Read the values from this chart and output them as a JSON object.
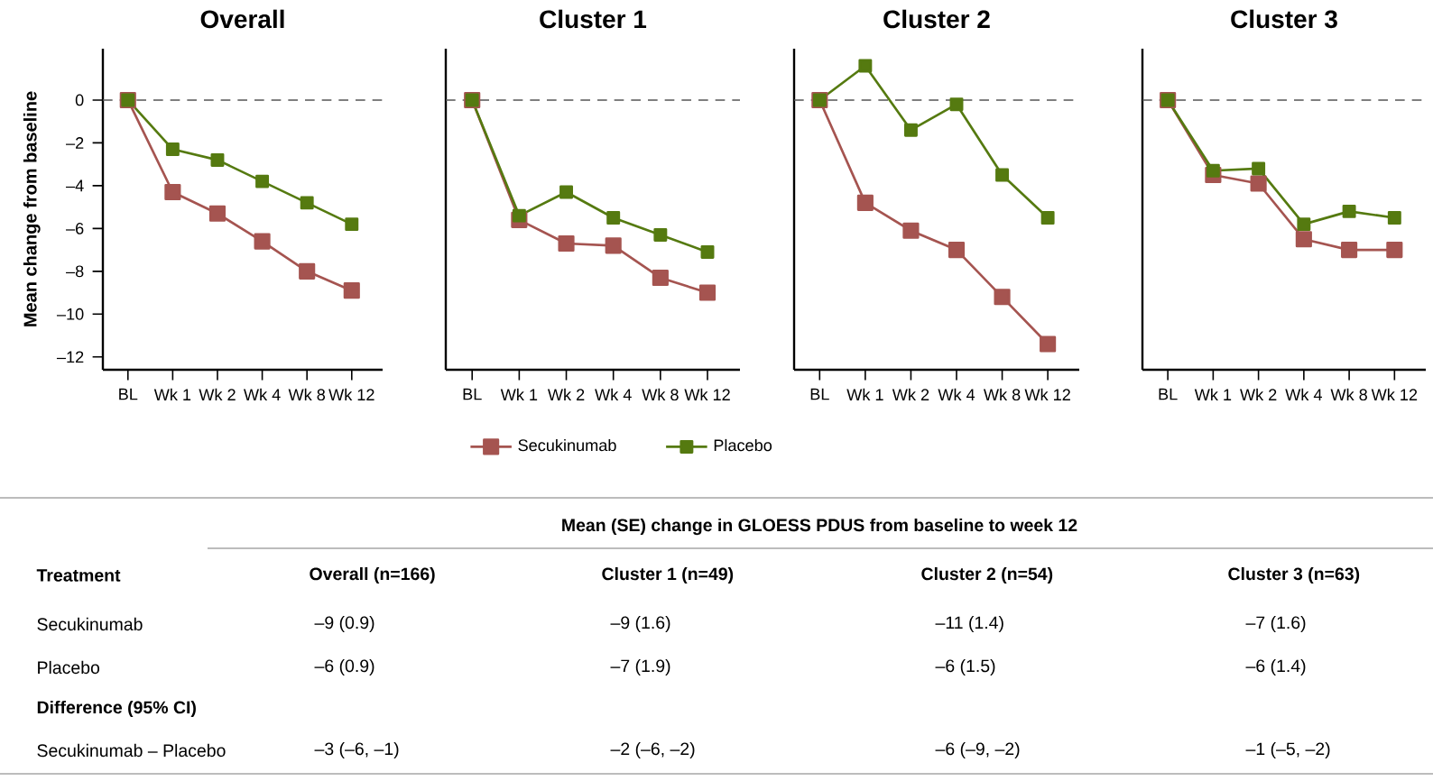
{
  "chart_data": [
    {
      "type": "line",
      "title": "Overall",
      "ylabel": "Mean change from baseline",
      "categories": [
        "BL",
        "Wk 1",
        "Wk 2",
        "Wk 4",
        "Wk 8",
        "Wk 12"
      ],
      "ylim": [
        -12.6,
        2.4
      ],
      "yticks": [
        {
          "value": -12,
          "label": "–12"
        },
        {
          "value": -10,
          "label": "–10"
        },
        {
          "value": -8,
          "label": "–8"
        },
        {
          "value": -6,
          "label": "–6"
        },
        {
          "value": -4,
          "label": "–4"
        },
        {
          "value": -2,
          "label": "–2"
        },
        0
      ],
      "marker": "square",
      "line_style": "solid",
      "legend": "bottom",
      "ref_lines": [
        {
          "axis": "y",
          "value": 0,
          "color": "#555555",
          "line_style": "dashed"
        }
      ],
      "series": [
        {
          "name": "Secukinumab",
          "color": "#a55450",
          "values": [
            0,
            -4.3,
            -5.3,
            -6.6,
            -8.0,
            -8.9
          ]
        },
        {
          "name": "Placebo",
          "color": "#557a10",
          "values": [
            0,
            -2.3,
            -2.8,
            -3.8,
            -4.8,
            -5.8
          ]
        }
      ]
    },
    {
      "type": "line",
      "title": "Cluster 1",
      "categories": [
        "BL",
        "Wk 1",
        "Wk 2",
        "Wk 4",
        "Wk 8",
        "Wk 12"
      ],
      "ylim": [
        -12.6,
        2.4
      ],
      "yticks": [
        -12,
        -10,
        -8,
        -6,
        -4,
        -2,
        0
      ],
      "tick_labels": "x",
      "marker": "square",
      "line_style": "solid",
      "ref_lines": [
        {
          "axis": "y",
          "value": 0,
          "color": "#555555",
          "line_style": "dashed"
        }
      ],
      "series": [
        {
          "color": "#a55450",
          "values": [
            0,
            -5.6,
            -6.7,
            -6.8,
            -8.3,
            -9.0
          ]
        },
        {
          "color": "#557a10",
          "values": [
            0,
            -5.4,
            -4.3,
            -5.5,
            -6.3,
            -7.1
          ]
        }
      ]
    },
    {
      "type": "line",
      "title": "Cluster 2",
      "categories": [
        "BL",
        "Wk 1",
        "Wk 2",
        "Wk 4",
        "Wk 8",
        "Wk 12"
      ],
      "ylim": [
        -12.6,
        2.4
      ],
      "yticks": [
        -12,
        -10,
        -8,
        -6,
        -4,
        -2,
        0
      ],
      "tick_labels": "x",
      "marker": "square",
      "line_style": "solid",
      "ref_lines": [
        {
          "axis": "y",
          "value": 0,
          "color": "#555555",
          "line_style": "dashed"
        }
      ],
      "series": [
        {
          "color": "#a55450",
          "values": [
            0,
            -4.8,
            -6.1,
            -7.0,
            -9.2,
            -11.4
          ]
        },
        {
          "color": "#557a10",
          "values": [
            0,
            1.6,
            -1.4,
            -0.2,
            -3.5,
            -5.5
          ]
        }
      ]
    },
    {
      "type": "line",
      "title": "Cluster 3",
      "categories": [
        "BL",
        "Wk 1",
        "Wk 2",
        "Wk 4",
        "Wk 8",
        "Wk 12"
      ],
      "ylim": [
        -12.6,
        2.4
      ],
      "yticks": [
        -12,
        -10,
        -8,
        -6,
        -4,
        -2,
        0
      ],
      "tick_labels": "x",
      "marker": "square",
      "line_style": "solid",
      "ref_lines": [
        {
          "axis": "y",
          "value": 0,
          "color": "#555555",
          "line_style": "dashed"
        }
      ],
      "series": [
        {
          "color": "#a55450",
          "values": [
            0,
            -3.5,
            -3.9,
            -6.5,
            -7.0,
            -7.0
          ]
        },
        {
          "color": "#557a10",
          "values": [
            0,
            -3.3,
            -3.2,
            -5.8,
            -5.2,
            -5.5
          ]
        }
      ]
    },
    {
      "type": "other",
      "annotations": [
        "Mean (SE) change in GLOESS PDUS from baseline to week 12",
        "Treatment",
        "Overall (n=166)",
        "Cluster 1 (n=49)",
        "Cluster 2 (n=54)",
        "Cluster 3 (n=63)",
        "Secukinumab",
        "–9 (0.9)",
        "–9 (1.6)",
        "–11 (1.4)",
        "–7 (1.6)",
        "Placebo",
        "–6 (0.9)",
        "–7 (1.9)",
        "–6 (1.5)",
        "–6 (1.4)",
        "Difference (95% CI)",
        "Secukinumab – Placebo",
        "–3 (–6, –1)",
        "–2 (–6, –2)",
        "–6 (–9, –2)",
        "–1 (–5, –2)"
      ]
    }
  ]
}
